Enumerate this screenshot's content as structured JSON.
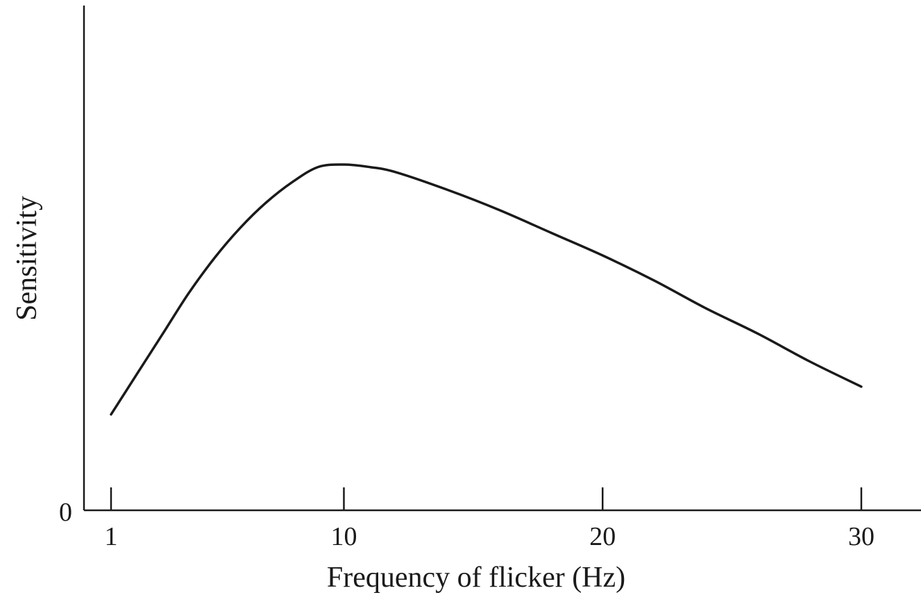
{
  "chart_data": {
    "type": "line",
    "title": "",
    "xlabel": "Frequency of flicker (Hz)",
    "ylabel": "Sensitivity",
    "xlim": [
      0,
      32
    ],
    "ylim": [
      0,
      1
    ],
    "x_ticks": [
      1,
      10,
      20,
      30
    ],
    "y_ticks": [
      0
    ],
    "grid": false,
    "line_color": "#1a1a1a",
    "series": [
      {
        "x": [
          1,
          2,
          3,
          4,
          5,
          6,
          7,
          8,
          9,
          10,
          11,
          12,
          14,
          16,
          18,
          20,
          22,
          24,
          26,
          28,
          30
        ],
        "values": [
          0.19,
          0.27,
          0.35,
          0.43,
          0.5,
          0.56,
          0.61,
          0.65,
          0.68,
          0.685,
          0.68,
          0.67,
          0.635,
          0.595,
          0.55,
          0.505,
          0.455,
          0.4,
          0.35,
          0.295,
          0.245
        ]
      }
    ]
  }
}
